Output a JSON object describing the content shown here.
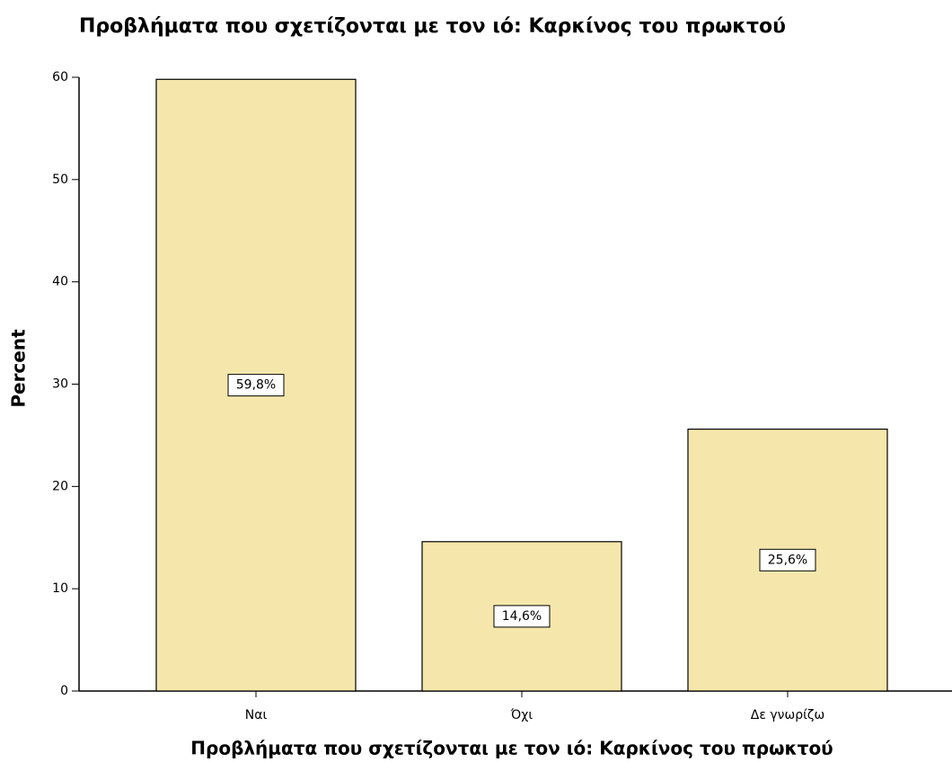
{
  "chart_data": {
    "type": "bar",
    "title": "Προβλήματα που σχετίζονται με τον ιό: Καρκίνος του πρωκτού",
    "x_label": "Προβλήματα που σχετίζονται με τον ιό: Καρκίνος του πρωκτού",
    "y_label": "Percent",
    "categories": [
      "Ναι",
      "Όχι",
      "Δε γνωρίζω"
    ],
    "values": [
      59.8,
      14.6,
      25.6
    ],
    "value_labels": [
      "59,8%",
      "14,6%",
      "25,6%"
    ],
    "color": "#f5e7ab",
    "ylim": [
      0,
      60
    ],
    "yticks": [
      0,
      10,
      20,
      30,
      40,
      50,
      60
    ],
    "grid": false
  }
}
